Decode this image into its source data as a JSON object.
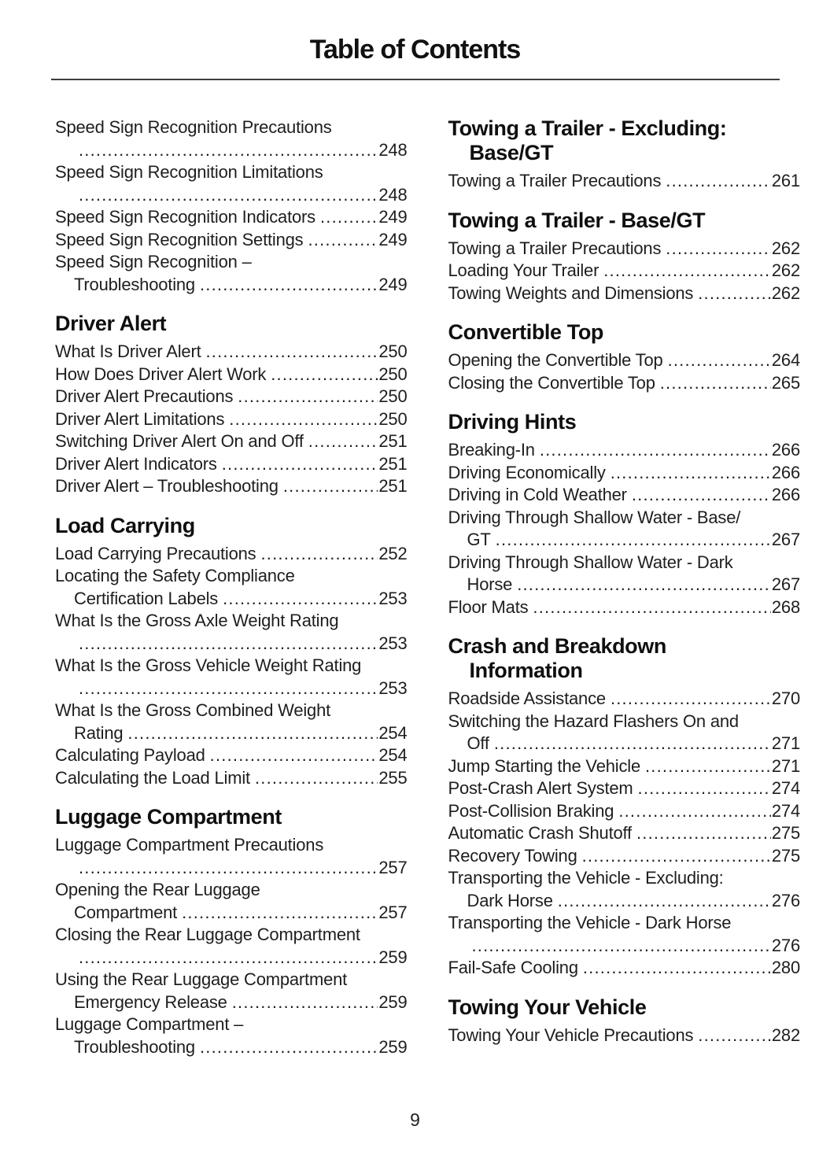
{
  "page": {
    "title": "Table of Contents",
    "page_number": "9"
  },
  "colors": {
    "text": "#1e1e20",
    "heading": "#0f0f11",
    "rule": "#3d3d3f",
    "background": "#ffffff"
  },
  "columns": [
    {
      "name": "left",
      "sections": [
        {
          "heading_lines": [],
          "entries": [
            {
              "t1": "Speed Sign Recognition Precautions",
              "t2": "",
              "page": "248"
            },
            {
              "t1": "Speed Sign Recognition Limitations",
              "t2": "",
              "page": "248"
            },
            {
              "t1": "Speed Sign Recognition Indicators",
              "page": "249"
            },
            {
              "t1": "Speed Sign Recognition Settings",
              "page": "249"
            },
            {
              "t1": "Speed Sign Recognition –",
              "t2": "Troubleshooting",
              "page": "249"
            }
          ]
        },
        {
          "heading_lines": [
            "Driver Alert"
          ],
          "entries": [
            {
              "t1": "What Is Driver Alert",
              "page": "250"
            },
            {
              "t1": "How Does Driver Alert Work",
              "page": "250"
            },
            {
              "t1": "Driver Alert Precautions",
              "page": "250"
            },
            {
              "t1": "Driver Alert Limitations",
              "page": "250"
            },
            {
              "t1": "Switching Driver Alert On and Off",
              "page": "251"
            },
            {
              "t1": "Driver Alert Indicators",
              "page": "251"
            },
            {
              "t1": "Driver Alert – Troubleshooting",
              "page": "251"
            }
          ]
        },
        {
          "heading_lines": [
            "Load Carrying"
          ],
          "entries": [
            {
              "t1": "Load Carrying Precautions",
              "page": "252"
            },
            {
              "t1": "Locating the Safety Compliance",
              "t2": "Certification Labels",
              "page": "253"
            },
            {
              "t1": "What Is the Gross Axle Weight Rating",
              "t2": "",
              "page": "253"
            },
            {
              "t1": "What Is the Gross Vehicle Weight Rating",
              "t2": "",
              "page": "253"
            },
            {
              "t1": "What Is the Gross Combined Weight",
              "t2": "Rating",
              "page": "254"
            },
            {
              "t1": "Calculating Payload",
              "page": "254"
            },
            {
              "t1": "Calculating the Load Limit",
              "page": "255"
            }
          ]
        },
        {
          "heading_lines": [
            "Luggage Compartment"
          ],
          "entries": [
            {
              "t1": "Luggage Compartment Precautions",
              "t2": "",
              "page": "257"
            },
            {
              "t1": "Opening the Rear Luggage",
              "t2": "Compartment",
              "page": "257"
            },
            {
              "t1": "Closing the Rear Luggage Compartment",
              "t2": "",
              "page": "259"
            },
            {
              "t1": "Using the Rear Luggage Compartment",
              "t2": "Emergency Release",
              "page": "259"
            },
            {
              "t1": "Luggage Compartment –",
              "t2": "Troubleshooting",
              "page": "259"
            }
          ]
        }
      ]
    },
    {
      "name": "right",
      "sections": [
        {
          "heading_lines": [
            "Towing a Trailer - Excluding:",
            "Base/GT"
          ],
          "entries": [
            {
              "t1": "Towing a Trailer Precautions",
              "page": "261"
            }
          ]
        },
        {
          "heading_lines": [
            "Towing a Trailer - Base/GT"
          ],
          "entries": [
            {
              "t1": "Towing a Trailer Precautions",
              "page": "262"
            },
            {
              "t1": "Loading Your Trailer",
              "page": "262"
            },
            {
              "t1": "Towing Weights and Dimensions",
              "page": "262"
            }
          ]
        },
        {
          "heading_lines": [
            "Convertible Top"
          ],
          "entries": [
            {
              "t1": "Opening the Convertible Top",
              "page": "264"
            },
            {
              "t1": "Closing the Convertible Top",
              "page": "265"
            }
          ]
        },
        {
          "heading_lines": [
            "Driving Hints"
          ],
          "entries": [
            {
              "t1": "Breaking-In",
              "page": "266"
            },
            {
              "t1": "Driving Economically",
              "page": "266"
            },
            {
              "t1": "Driving in Cold Weather",
              "page": "266"
            },
            {
              "t1": "Driving Through Shallow Water - Base/",
              "t2": "GT",
              "page": "267"
            },
            {
              "t1": "Driving Through Shallow Water - Dark",
              "t2": "Horse",
              "page": "267"
            },
            {
              "t1": "Floor Mats",
              "page": "268"
            }
          ]
        },
        {
          "heading_lines": [
            "Crash and Breakdown",
            "Information"
          ],
          "entries": [
            {
              "t1": "Roadside Assistance",
              "page": "270"
            },
            {
              "t1": "Switching the Hazard Flashers On and",
              "t2": "Off",
              "page": "271"
            },
            {
              "t1": "Jump Starting the Vehicle",
              "page": "271"
            },
            {
              "t1": "Post-Crash Alert System",
              "page": "274"
            },
            {
              "t1": "Post-Collision Braking",
              "page": "274"
            },
            {
              "t1": "Automatic Crash Shutoff",
              "page": "275"
            },
            {
              "t1": "Recovery Towing",
              "page": "275"
            },
            {
              "t1": "Transporting the Vehicle - Excluding:",
              "t2": "Dark Horse",
              "page": "276"
            },
            {
              "t1": "Transporting the Vehicle - Dark Horse",
              "t2": "",
              "page": "276"
            },
            {
              "t1": "Fail-Safe Cooling",
              "page": "280"
            }
          ]
        },
        {
          "heading_lines": [
            "Towing Your Vehicle"
          ],
          "entries": [
            {
              "t1": "Towing Your Vehicle Precautions",
              "page": "282"
            }
          ]
        }
      ]
    }
  ]
}
